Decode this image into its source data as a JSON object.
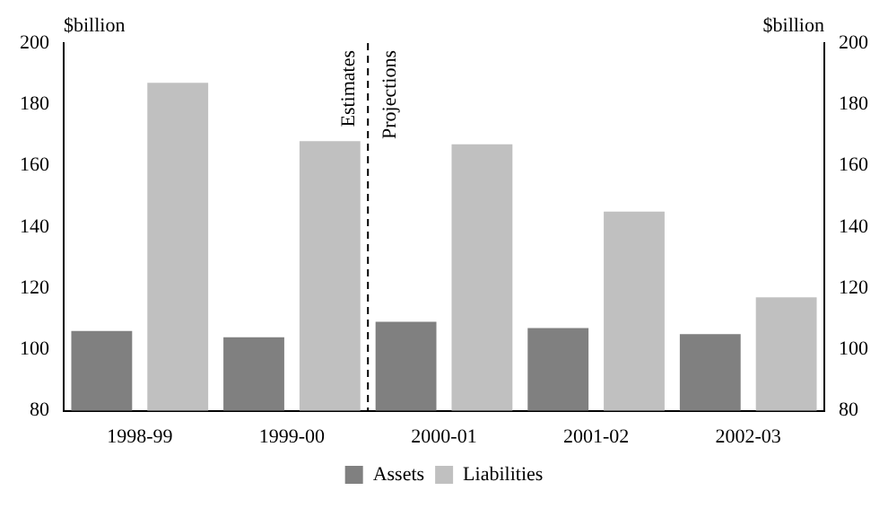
{
  "chart_data": {
    "type": "bar",
    "categories": [
      "1998-99",
      "1999-00",
      "2000-01",
      "2001-02",
      "2002-03"
    ],
    "series": [
      {
        "name": "Assets",
        "color": "#808080",
        "values": [
          106,
          104,
          109,
          107,
          105
        ]
      },
      {
        "name": "Liabilities",
        "color": "#c0c0c0",
        "values": [
          187,
          168,
          167,
          145,
          117
        ]
      }
    ],
    "ylabel": "$billion",
    "y2label": "$billion",
    "ylim": [
      80,
      200
    ],
    "yticks": [
      80,
      100,
      120,
      140,
      160,
      180,
      200
    ],
    "y2lim": [
      80,
      200
    ],
    "y2ticks": [
      80,
      100,
      120,
      140,
      160,
      180,
      200
    ],
    "annotations": [
      "Estimates",
      "Projections"
    ],
    "legend": "bottom",
    "grid": false
  }
}
